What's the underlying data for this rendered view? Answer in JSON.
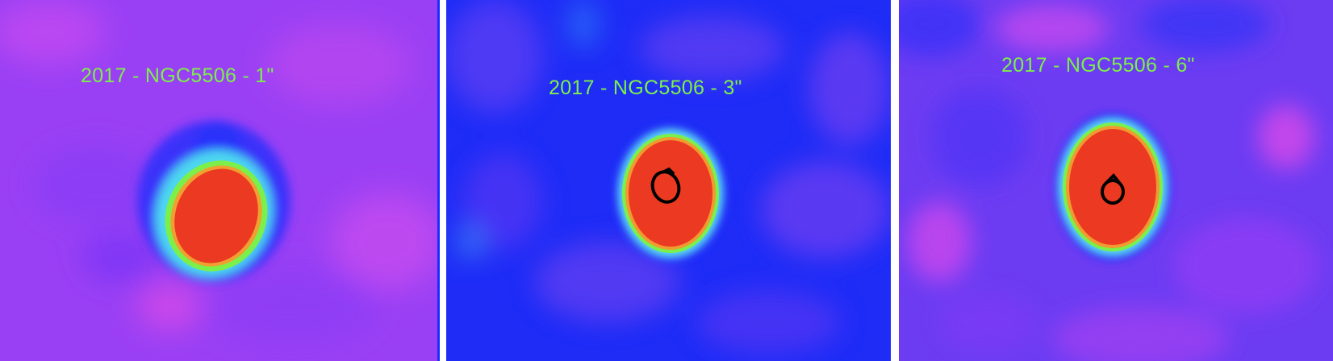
{
  "panels": [
    {
      "label": "2017 - NGC5506 - 1\"",
      "colors": {
        "background": "#9a3cf6",
        "halo": "#2a2cff",
        "ring": "#7cf04a",
        "core": "#ec3a22"
      },
      "contours": false
    },
    {
      "label": "2017 - NGC5506 - 3\"",
      "colors": {
        "background": "#2a2cf6",
        "halo": "#5ee0f0",
        "ring": "#7cf04a",
        "core": "#ec3a22"
      },
      "contours": true
    },
    {
      "label": "2017 - NGC5506 - 6\"",
      "colors": {
        "background": "#7a3cf0",
        "halo": "#2a2cff",
        "ring": "#7cf04a",
        "core": "#ec3a22"
      },
      "contours": true
    }
  ]
}
